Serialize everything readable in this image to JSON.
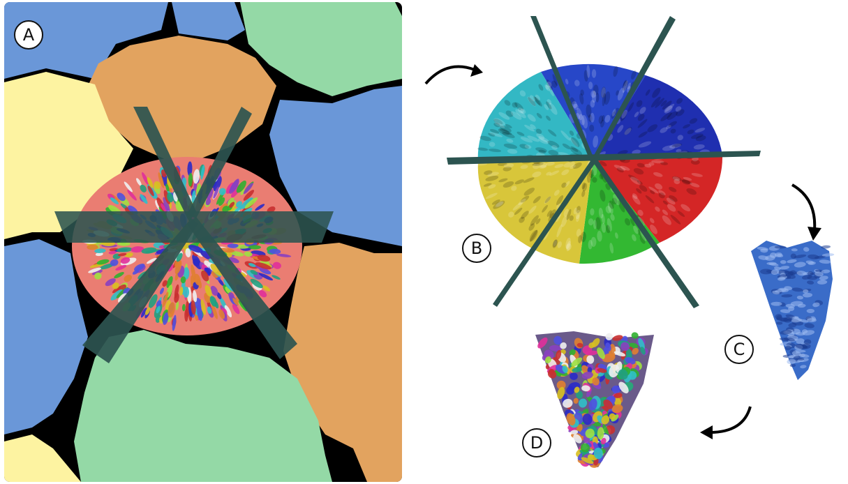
{
  "figure": {
    "panels": [
      {
        "id": "A",
        "label": "A"
      },
      {
        "id": "B",
        "label": "B"
      },
      {
        "id": "C",
        "label": "C"
      },
      {
        "id": "D",
        "label": "D"
      }
    ],
    "colors": {
      "blue_tile": "#6a97d8",
      "orange_tile": "#e2a35f",
      "green_tile": "#94d9a6",
      "yellow_tile": "#fdf3a1",
      "salmon_center": "#ea7d72",
      "plane": "#2c5450",
      "wedge_blue": "#2747c8",
      "wedge_cyan": "#33b8c4",
      "wedge_yellow": "#d8c63a",
      "wedge_green": "#33b832",
      "wedge_red": "#d42626",
      "wedge_darkblue": "#1f2fb0",
      "extracted_wedge": "#3a6cc8"
    },
    "arrows": [
      "curved-arrow-top",
      "curved-arrow-right",
      "curved-arrow-bottom"
    ]
  }
}
